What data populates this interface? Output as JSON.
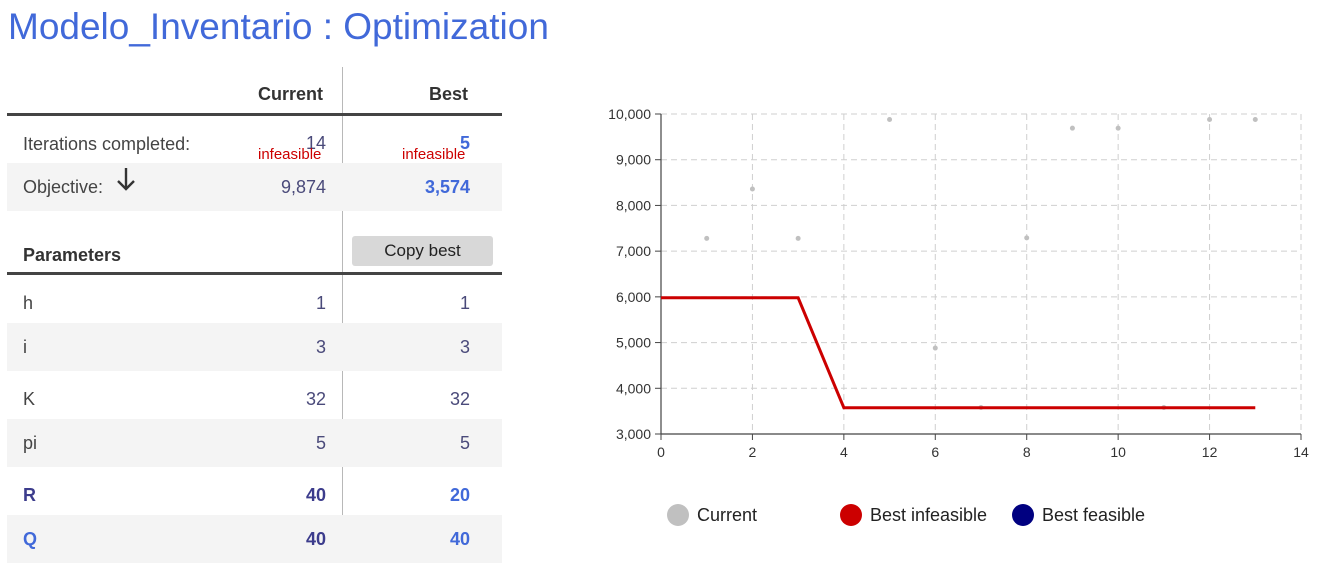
{
  "page": {
    "title": "Modelo_Inventario : Optimization"
  },
  "table": {
    "col_current": "Current",
    "col_best": "Best",
    "iterations": {
      "label": "Iterations completed:",
      "current": "14",
      "best": "5",
      "current_status": "infeasible",
      "best_status": "infeasible"
    },
    "objective": {
      "label": "Objective:",
      "current": "9,874",
      "best": "3,574",
      "direction_icon": "arrow-down-icon"
    },
    "parameters_label": "Parameters",
    "copy_best_label": "Copy best",
    "params": [
      {
        "name": "h",
        "current": "1",
        "best": "1",
        "decision": false
      },
      {
        "name": "i",
        "current": "3",
        "best": "3",
        "decision": false
      },
      {
        "name": "K",
        "current": "32",
        "best": "32",
        "decision": false
      },
      {
        "name": "pi",
        "current": "5",
        "best": "5",
        "decision": false
      },
      {
        "name": "R",
        "current": "40",
        "best": "20",
        "decision": true
      },
      {
        "name": "Q",
        "current": "40",
        "best": "40",
        "decision": true
      }
    ]
  },
  "chart_data": {
    "type": "scatter",
    "xlim": [
      0,
      14
    ],
    "ylim": [
      3000,
      10000
    ],
    "x_ticks": [
      "0",
      "2",
      "4",
      "6",
      "8",
      "10",
      "12",
      "14"
    ],
    "y_ticks": [
      "3,000",
      "4,000",
      "5,000",
      "6,000",
      "7,000",
      "8,000",
      "9,000",
      "10,000"
    ],
    "grid": true,
    "legend_position": "bottom",
    "series": [
      {
        "name": "Current",
        "color": "#c0c0c0",
        "kind": "points",
        "points": [
          [
            1,
            7280
          ],
          [
            2,
            8360
          ],
          [
            3,
            7280
          ],
          [
            5,
            9880
          ],
          [
            6,
            4880
          ],
          [
            7,
            3580
          ],
          [
            8,
            7290
          ],
          [
            9,
            9690
          ],
          [
            10,
            9690
          ],
          [
            11,
            3580
          ],
          [
            12,
            9880
          ],
          [
            13,
            9880
          ]
        ]
      },
      {
        "name": "Best infeasible",
        "color": "#cc0000",
        "kind": "line",
        "points": [
          [
            0,
            5980
          ],
          [
            3,
            5980
          ],
          [
            4,
            3574
          ],
          [
            13,
            3574
          ]
        ]
      },
      {
        "name": "Best feasible",
        "color": "#000080",
        "kind": "line",
        "points": []
      }
    ]
  }
}
